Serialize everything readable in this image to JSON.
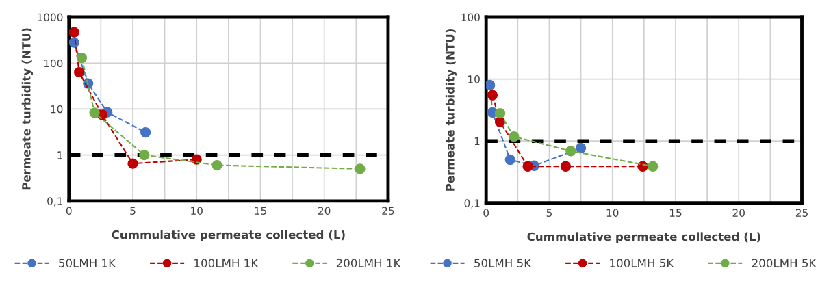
{
  "chart_data": [
    {
      "type": "line",
      "xlabel": "Cummulative permeate collected (L)",
      "ylabel": "Permeate turbidity (NTU)",
      "log": "y",
      "grid": true,
      "legend": "bottom",
      "marker": "circle",
      "line_style": "dashed",
      "xlim": [
        0,
        25
      ],
      "xticks": [
        0,
        {
          "value": 2.5,
          "label": null
        },
        5,
        {
          "value": 7.5,
          "label": null
        },
        10,
        {
          "value": 12.5,
          "label": null
        },
        15,
        {
          "value": 17.5,
          "label": null
        },
        20,
        {
          "value": 22.5,
          "label": null
        },
        25
      ],
      "ylim": [
        0.1,
        1000
      ],
      "yticks": [
        {
          "value": 0.1,
          "label": "0,1"
        },
        1,
        10,
        100,
        1000
      ],
      "ref_lines": [
        {
          "axis": "y",
          "value": 1,
          "color": "#000000",
          "line_style": "dashed"
        }
      ],
      "series": [
        {
          "name": "50LMH 1K",
          "color": "#4472c4",
          "x": [
            0.4,
            1.5,
            3.0,
            6.0
          ],
          "values": [
            280,
            36,
            8.5,
            3.1
          ]
        },
        {
          "name": "100LMH 1K",
          "color": "#c00000",
          "x": [
            0.4,
            0.8,
            2.6,
            5.0,
            10.0
          ],
          "values": [
            470,
            63,
            7.5,
            0.65,
            0.8
          ]
        },
        {
          "name": "200LMH 1K",
          "color": "#70ad47",
          "x": [
            1.0,
            2.0,
            5.9,
            11.6,
            22.8
          ],
          "values": [
            130,
            8.3,
            1.0,
            0.6,
            0.5
          ]
        }
      ]
    },
    {
      "type": "line",
      "xlabel": "Cummulative permeate collected (L)",
      "ylabel": "Permeate turbidity (NTU)",
      "log": "y",
      "grid": true,
      "legend": "bottom",
      "marker": "circle",
      "line_style": "dashed",
      "xlim": [
        0,
        25
      ],
      "xticks": [
        0,
        {
          "value": 2.5,
          "label": null
        },
        5,
        {
          "value": 7.5,
          "label": null
        },
        10,
        {
          "value": 12.5,
          "label": null
        },
        15,
        {
          "value": 17.5,
          "label": null
        },
        20,
        {
          "value": 22.5,
          "label": null
        },
        25
      ],
      "ylim": [
        0.1,
        100
      ],
      "yticks": [
        {
          "value": 0.1,
          "label": "0,1"
        },
        1,
        10,
        100
      ],
      "ref_lines": [
        {
          "axis": "y",
          "value": 1,
          "color": "#000000",
          "line_style": "dashed"
        }
      ],
      "series": [
        {
          "name": "50LMH 5K",
          "color": "#4472c4",
          "x": [
            0.3,
            0.5,
            1.9,
            3.8,
            7.5
          ],
          "values": [
            8.0,
            2.9,
            0.5,
            0.4,
            0.77
          ]
        },
        {
          "name": "100LMH 5K",
          "color": "#c00000",
          "x": [
            0.5,
            1.1,
            3.3,
            6.3,
            12.4
          ],
          "values": [
            5.5,
            2.05,
            0.39,
            0.39,
            0.39
          ]
        },
        {
          "name": "200LMH 5K",
          "color": "#70ad47",
          "x": [
            1.1,
            2.2,
            6.7,
            13.2
          ],
          "values": [
            2.8,
            1.18,
            0.69,
            0.39
          ]
        }
      ]
    }
  ]
}
